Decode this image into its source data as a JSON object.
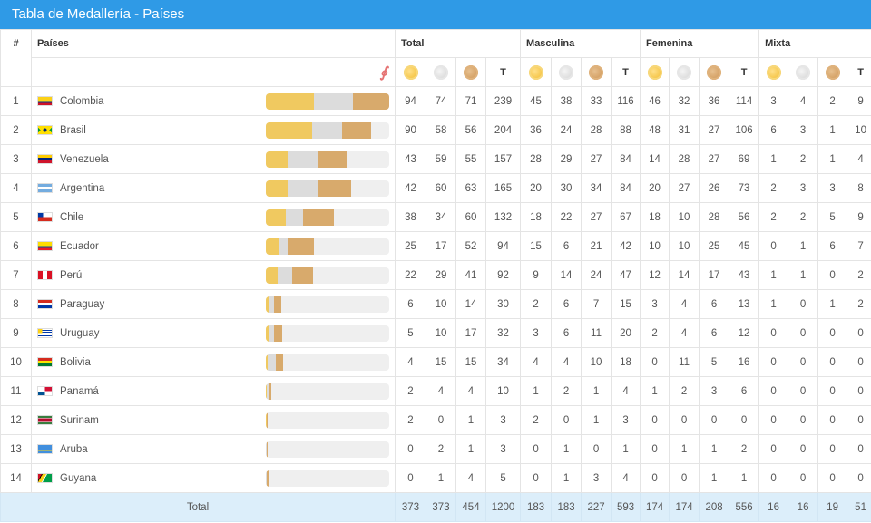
{
  "title": "Tabla de Medallería - Países",
  "headers": {
    "index": "#",
    "countries": "Países",
    "groups": [
      "Total",
      "Masculina",
      "Femenina",
      "Mixta"
    ],
    "total_col": "T"
  },
  "colors": {
    "header_bg": "#2f9ae6",
    "gold": "#f0c960",
    "silver": "#dcdcdc",
    "bronze": "#d8aa6c",
    "footer_bg": "#dceefa"
  },
  "rows": [
    {
      "rank": "1",
      "country": "Colombia",
      "flag": "colombia",
      "total": [
        "94",
        "74",
        "71",
        "239"
      ],
      "masc": [
        "45",
        "38",
        "33",
        "116"
      ],
      "fem": [
        "46",
        "32",
        "36",
        "114"
      ],
      "mix": [
        "3",
        "4",
        "2",
        "9"
      ]
    },
    {
      "rank": "2",
      "country": "Brasil",
      "flag": "brasil",
      "total": [
        "90",
        "58",
        "56",
        "204"
      ],
      "masc": [
        "36",
        "24",
        "28",
        "88"
      ],
      "fem": [
        "48",
        "31",
        "27",
        "106"
      ],
      "mix": [
        "6",
        "3",
        "1",
        "10"
      ]
    },
    {
      "rank": "3",
      "country": "Venezuela",
      "flag": "venezuela",
      "total": [
        "43",
        "59",
        "55",
        "157"
      ],
      "masc": [
        "28",
        "29",
        "27",
        "84"
      ],
      "fem": [
        "14",
        "28",
        "27",
        "69"
      ],
      "mix": [
        "1",
        "2",
        "1",
        "4"
      ]
    },
    {
      "rank": "4",
      "country": "Argentina",
      "flag": "argentina",
      "total": [
        "42",
        "60",
        "63",
        "165"
      ],
      "masc": [
        "20",
        "30",
        "34",
        "84"
      ],
      "fem": [
        "20",
        "27",
        "26",
        "73"
      ],
      "mix": [
        "2",
        "3",
        "3",
        "8"
      ]
    },
    {
      "rank": "5",
      "country": "Chile",
      "flag": "chile",
      "total": [
        "38",
        "34",
        "60",
        "132"
      ],
      "masc": [
        "18",
        "22",
        "27",
        "67"
      ],
      "fem": [
        "18",
        "10",
        "28",
        "56"
      ],
      "mix": [
        "2",
        "2",
        "5",
        "9"
      ]
    },
    {
      "rank": "6",
      "country": "Ecuador",
      "flag": "ecuador",
      "total": [
        "25",
        "17",
        "52",
        "94"
      ],
      "masc": [
        "15",
        "6",
        "21",
        "42"
      ],
      "fem": [
        "10",
        "10",
        "25",
        "45"
      ],
      "mix": [
        "0",
        "1",
        "6",
        "7"
      ]
    },
    {
      "rank": "7",
      "country": "Perú",
      "flag": "peru",
      "total": [
        "22",
        "29",
        "41",
        "92"
      ],
      "masc": [
        "9",
        "14",
        "24",
        "47"
      ],
      "fem": [
        "12",
        "14",
        "17",
        "43"
      ],
      "mix": [
        "1",
        "1",
        "0",
        "2"
      ]
    },
    {
      "rank": "8",
      "country": "Paraguay",
      "flag": "paraguay",
      "total": [
        "6",
        "10",
        "14",
        "30"
      ],
      "masc": [
        "2",
        "6",
        "7",
        "15"
      ],
      "fem": [
        "3",
        "4",
        "6",
        "13"
      ],
      "mix": [
        "1",
        "0",
        "1",
        "2"
      ]
    },
    {
      "rank": "9",
      "country": "Uruguay",
      "flag": "uruguay",
      "total": [
        "5",
        "10",
        "17",
        "32"
      ],
      "masc": [
        "3",
        "6",
        "11",
        "20"
      ],
      "fem": [
        "2",
        "4",
        "6",
        "12"
      ],
      "mix": [
        "0",
        "0",
        "0",
        "0"
      ]
    },
    {
      "rank": "10",
      "country": "Bolivia",
      "flag": "bolivia",
      "total": [
        "4",
        "15",
        "15",
        "34"
      ],
      "masc": [
        "4",
        "4",
        "10",
        "18"
      ],
      "fem": [
        "0",
        "11",
        "5",
        "16"
      ],
      "mix": [
        "0",
        "0",
        "0",
        "0"
      ]
    },
    {
      "rank": "11",
      "country": "Panamá",
      "flag": "panama",
      "total": [
        "2",
        "4",
        "4",
        "10"
      ],
      "masc": [
        "1",
        "2",
        "1",
        "4"
      ],
      "fem": [
        "1",
        "2",
        "3",
        "6"
      ],
      "mix": [
        "0",
        "0",
        "0",
        "0"
      ]
    },
    {
      "rank": "12",
      "country": "Surinam",
      "flag": "surinam",
      "total": [
        "2",
        "0",
        "1",
        "3"
      ],
      "masc": [
        "2",
        "0",
        "1",
        "3"
      ],
      "fem": [
        "0",
        "0",
        "0",
        "0"
      ],
      "mix": [
        "0",
        "0",
        "0",
        "0"
      ]
    },
    {
      "rank": "13",
      "country": "Aruba",
      "flag": "aruba",
      "total": [
        "0",
        "2",
        "1",
        "3"
      ],
      "masc": [
        "0",
        "1",
        "0",
        "1"
      ],
      "fem": [
        "0",
        "1",
        "1",
        "2"
      ],
      "mix": [
        "0",
        "0",
        "0",
        "0"
      ]
    },
    {
      "rank": "14",
      "country": "Guyana",
      "flag": "guyana",
      "total": [
        "0",
        "1",
        "4",
        "5"
      ],
      "masc": [
        "0",
        "1",
        "3",
        "4"
      ],
      "fem": [
        "0",
        "0",
        "1",
        "1"
      ],
      "mix": [
        "0",
        "0",
        "0",
        "0"
      ]
    }
  ],
  "footer": {
    "label": "Total",
    "total": [
      "373",
      "373",
      "454",
      "1200"
    ],
    "masc": [
      "183",
      "183",
      "227",
      "593"
    ],
    "fem": [
      "174",
      "174",
      "208",
      "556"
    ],
    "mix": [
      "16",
      "16",
      "19",
      "51"
    ]
  }
}
